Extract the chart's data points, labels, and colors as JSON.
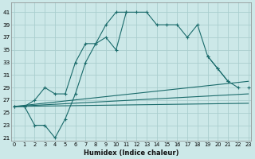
{
  "xlabel": "Humidex (Indice chaleur)",
  "bg_color": "#cce8e8",
  "grid_color": "#aacece",
  "line_color": "#1a6b6b",
  "xlim": [
    -0.3,
    23.3
  ],
  "ylim": [
    20.5,
    42.5
  ],
  "xticks": [
    0,
    1,
    2,
    3,
    4,
    5,
    6,
    7,
    8,
    9,
    10,
    11,
    12,
    13,
    14,
    15,
    16,
    17,
    18,
    19,
    20,
    21,
    22,
    23
  ],
  "yticks": [
    21,
    23,
    25,
    27,
    29,
    31,
    33,
    35,
    37,
    39,
    41
  ],
  "curve1_x": [
    0,
    1,
    2,
    3,
    4,
    5,
    6,
    7,
    8,
    9,
    10,
    11,
    12,
    13,
    14,
    15,
    16,
    17,
    18,
    19,
    20,
    21,
    22
  ],
  "curve1_y": [
    26,
    26,
    27,
    29,
    28,
    28,
    33,
    36,
    36,
    37,
    35,
    41,
    41,
    41,
    39,
    39,
    39,
    37,
    39,
    34,
    32,
    30,
    29
  ],
  "curve2_x": [
    0,
    1,
    2,
    3,
    4,
    5,
    6,
    7,
    8,
    9,
    10,
    11,
    12,
    13,
    14,
    15,
    16,
    17,
    18,
    19,
    20,
    21,
    22,
    23
  ],
  "curve2_y": [
    26,
    26,
    23,
    23,
    21,
    24,
    28,
    33,
    36,
    39,
    41,
    41,
    null,
    null,
    null,
    null,
    null,
    null,
    null,
    34,
    32,
    30,
    null,
    29
  ],
  "fan_lines": [
    {
      "x": [
        0,
        23
      ],
      "y": [
        26,
        30
      ]
    },
    {
      "x": [
        0,
        23
      ],
      "y": [
        26,
        28
      ]
    },
    {
      "x": [
        0,
        23
      ],
      "y": [
        26,
        26.5
      ]
    }
  ]
}
